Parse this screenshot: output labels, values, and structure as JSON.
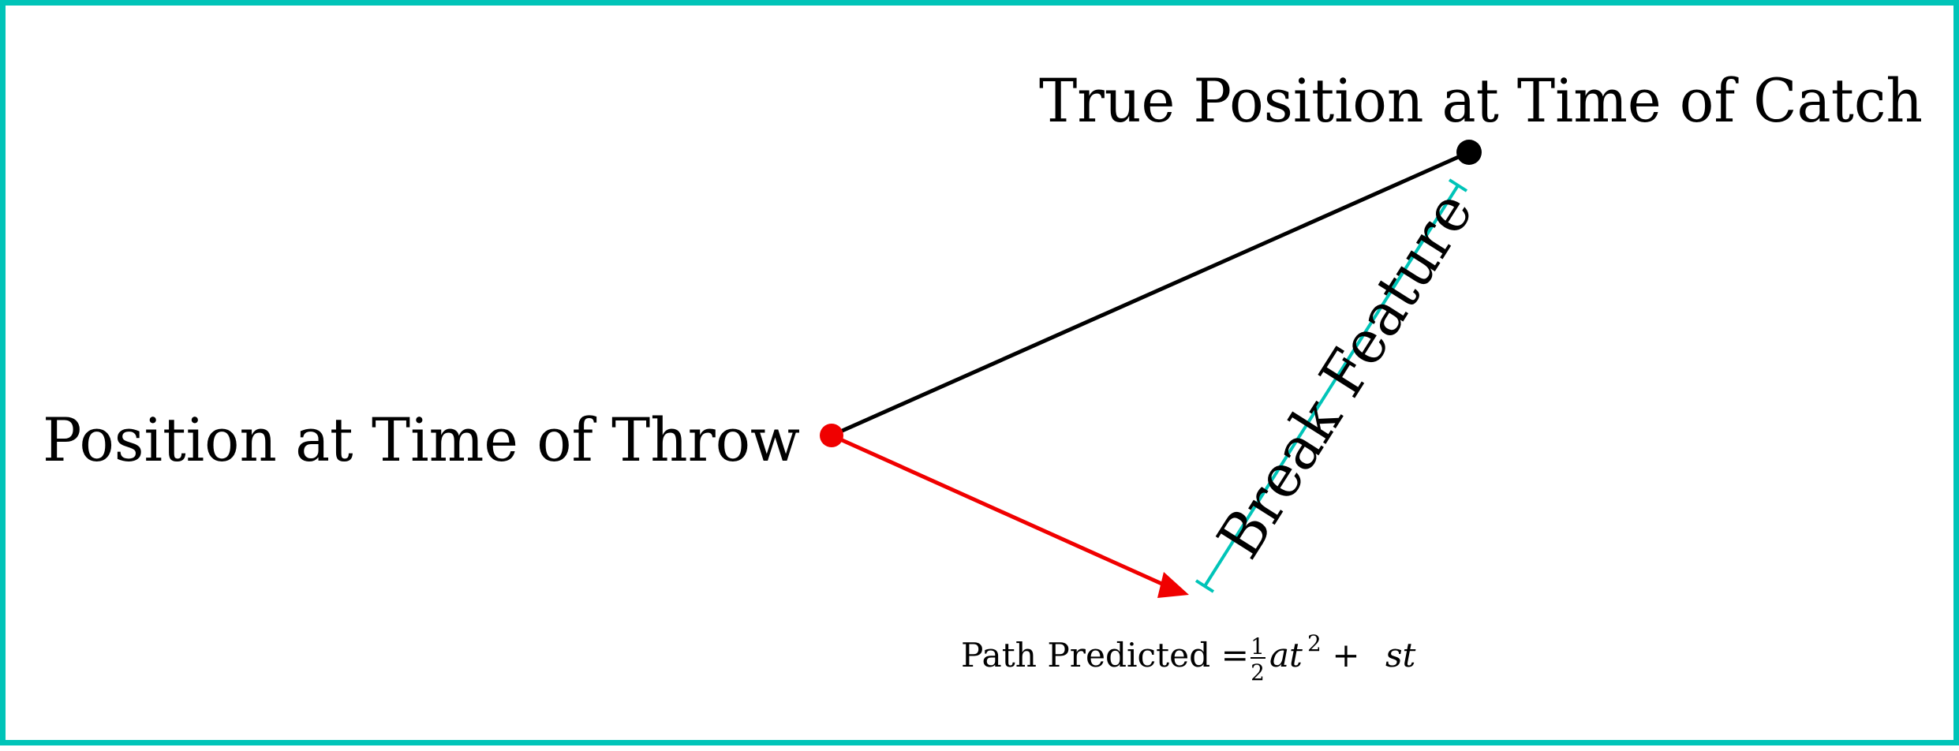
{
  "diagram": {
    "colors": {
      "frame": "#00c4b8",
      "true_path": "#000000",
      "predicted_path": "#f00000",
      "break_feature": "#00c4b8",
      "text": "#000000"
    },
    "labels": {
      "throw_position": "Position at Time of Throw",
      "catch_position": "True Position at Time of Catch",
      "break_feature": "Break Feature",
      "path_predicted_prefix": "Path Predicted =",
      "fraction_numerator": "1",
      "fraction_denominator": "2",
      "term_at": "at",
      "exponent": "2",
      "plus": " + ",
      "term_st": "st"
    },
    "icons": {
      "throw_point": "red-dot",
      "catch_point": "black-dot",
      "arrowhead": "triangle-arrowhead"
    }
  }
}
